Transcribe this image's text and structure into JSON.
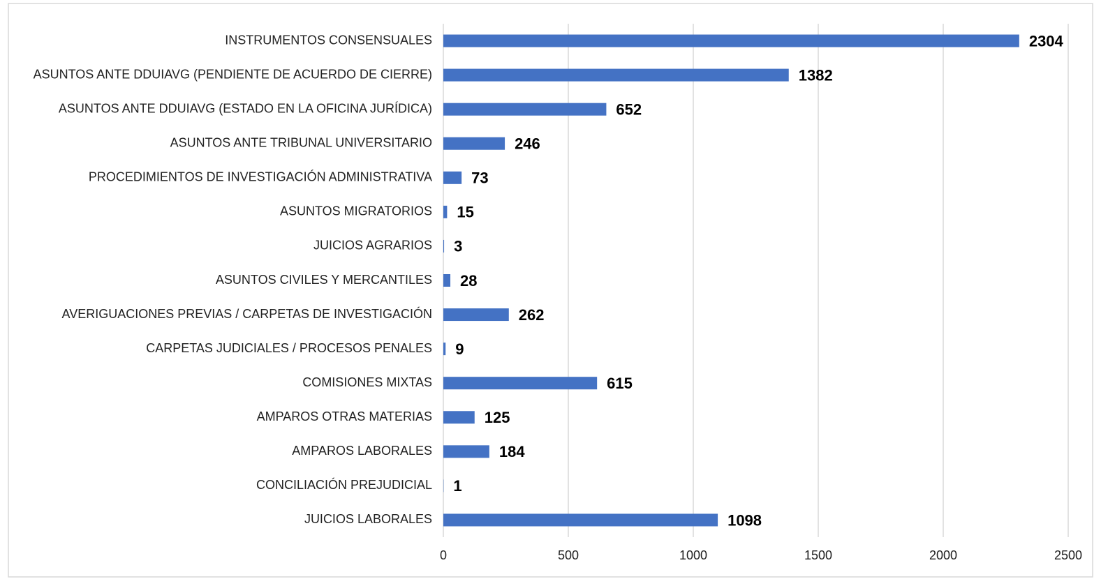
{
  "chart_data": {
    "type": "bar",
    "orientation": "horizontal",
    "categories": [
      "INSTRUMENTOS CONSENSUALES",
      "ASUNTOS ANTE DDUIAVG (PENDIENTE DE ACUERDO DE CIERRE)",
      "ASUNTOS ANTE DDUIAVG (ESTADO EN LA OFICINA JURÍDICA)",
      "ASUNTOS ANTE TRIBUNAL UNIVERSITARIO",
      "PROCEDIMIENTOS DE INVESTIGACIÓN ADMINISTRATIVA",
      "ASUNTOS MIGRATORIOS",
      "JUICIOS AGRARIOS",
      "ASUNTOS CIVILES Y MERCANTILES",
      "AVERIGUACIONES PREVIAS / CARPETAS DE INVESTIGACIÓN",
      "CARPETAS JUDICIALES / PROCESOS PENALES",
      "COMISIONES MIXTAS",
      "AMPAROS OTRAS MATERIAS",
      "AMPAROS LABORALES",
      "CONCILIACIÓN PREJUDICIAL",
      "JUICIOS LABORALES"
    ],
    "values": [
      2304,
      1382,
      652,
      246,
      73,
      15,
      3,
      28,
      262,
      9,
      615,
      125,
      184,
      1,
      1098
    ],
    "color": "#4472c4",
    "xlim": [
      0,
      2500
    ],
    "xticks": [
      0,
      500,
      1000,
      1500,
      2000,
      2500
    ],
    "grid": true
  }
}
